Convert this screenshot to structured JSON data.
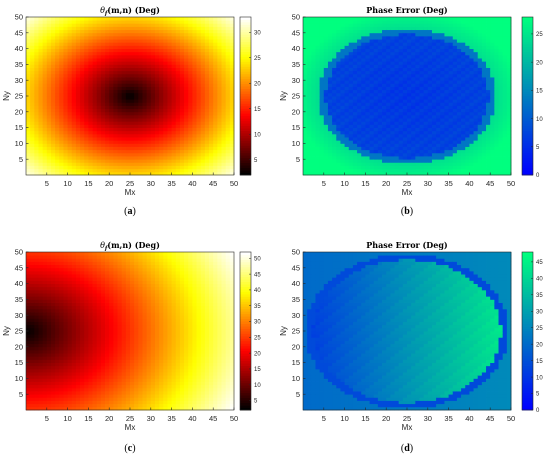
{
  "chart_data": [
    {
      "type": "heatmap",
      "caption": "(a)",
      "title": "θ_f(m,n) (Deg)",
      "title_parts": {
        "base": "θ",
        "sub": "f",
        "rest": "(m,n) (Deg)"
      },
      "xlabel": "Mx",
      "ylabel": "Ny",
      "xlim": [
        0,
        50
      ],
      "ylim": [
        0,
        50
      ],
      "xticks": [
        "5",
        "10",
        "15",
        "20",
        "25",
        "30",
        "35",
        "40",
        "45",
        "50"
      ],
      "yticks": [
        "5",
        "10",
        "15",
        "20",
        "25",
        "30",
        "35",
        "40",
        "45",
        "50"
      ],
      "colormap": "hot",
      "colorbar_range": [
        2,
        33
      ],
      "colorbar_ticks": [
        "5",
        "10",
        "15",
        "20",
        "25",
        "30"
      ],
      "colorbar_values": [
        5,
        10,
        15,
        20,
        25,
        30
      ],
      "grid_size": [
        50,
        50
      ],
      "model": {
        "form": "radial",
        "center": [
          25.5,
          25.5
        ],
        "min_value": 2,
        "gradient": 0.86
      }
    },
    {
      "type": "heatmap",
      "caption": "(b)",
      "title": "Phase Error (Deg)",
      "xlabel": "Mx",
      "ylabel": "Ny",
      "xlim": [
        0,
        50
      ],
      "ylim": [
        0,
        50
      ],
      "xticks": [
        "5",
        "10",
        "15",
        "20",
        "25",
        "30",
        "35",
        "40",
        "45",
        "50"
      ],
      "yticks": [
        "5",
        "10",
        "15",
        "20",
        "25",
        "30",
        "35",
        "40",
        "45",
        "50"
      ],
      "colormap": "winter",
      "colorbar_range": [
        0,
        28
      ],
      "colorbar_ticks": [
        "0",
        "5",
        "10",
        "15",
        "20",
        "25"
      ],
      "colorbar_values": [
        0,
        5,
        10,
        15,
        20,
        25
      ],
      "grid_size": [
        50,
        50
      ],
      "model": {
        "form": "ring",
        "center": [
          25.5,
          25.5
        ],
        "ring_radius": 20.5,
        "base_value": 5,
        "ring_value": 13,
        "outer_value": 24
      }
    },
    {
      "type": "heatmap",
      "caption": "(c)",
      "title": "θ_f(m,n) (Deg)",
      "title_parts": {
        "base": "θ",
        "sub": "f",
        "rest": "(m,n) (Deg)"
      },
      "xlabel": "Mx",
      "ylabel": "Ny",
      "xlim": [
        0,
        50
      ],
      "ylim": [
        0,
        50
      ],
      "xticks": [
        "5",
        "10",
        "15",
        "20",
        "25",
        "30",
        "35",
        "40",
        "45",
        "50"
      ],
      "yticks": [
        "5",
        "10",
        "15",
        "20",
        "25",
        "30",
        "35",
        "40",
        "45",
        "50"
      ],
      "colormap": "hot",
      "colorbar_range": [
        2,
        52
      ],
      "colorbar_ticks": [
        "5",
        "10",
        "15",
        "20",
        "25",
        "30",
        "35",
        "40",
        "45",
        "50"
      ],
      "colorbar_values": [
        5,
        10,
        15,
        20,
        25,
        30,
        35,
        40,
        45,
        50
      ],
      "grid_size": [
        50,
        50
      ],
      "model": {
        "form": "radial",
        "center": [
          0.5,
          25.5
        ],
        "min_value": 2,
        "gradient": 0.9
      }
    },
    {
      "type": "heatmap",
      "caption": "(d)",
      "title": "Phase Error (Deg)",
      "xlabel": "Mx",
      "ylabel": "Ny",
      "xlim": [
        0,
        50
      ],
      "ylim": [
        0,
        50
      ],
      "xticks": [
        "5",
        "10",
        "15",
        "20",
        "25",
        "30",
        "35",
        "40",
        "45",
        "50"
      ],
      "yticks": [
        "5",
        "10",
        "15",
        "20",
        "25",
        "30",
        "35",
        "40",
        "45",
        "50"
      ],
      "colormap": "winter",
      "colorbar_range": [
        0,
        48
      ],
      "colorbar_ticks": [
        "0",
        "5",
        "10",
        "15",
        "20",
        "25",
        "30",
        "35",
        "40",
        "45"
      ],
      "colorbar_values": [
        0,
        5,
        10,
        15,
        20,
        25,
        30,
        35,
        40,
        45
      ],
      "grid_size": [
        50,
        50
      ],
      "model": {
        "form": "ring-gradient",
        "center": [
          25.5,
          25.5
        ],
        "ring_radius": 23.5,
        "base_value": 10,
        "ring_value": 14,
        "outer_value": 20,
        "gradient_to": 44
      }
    }
  ],
  "colors": {
    "axis": "#262626",
    "tick_text": "#262626",
    "title": "#000000",
    "caption": "#000000"
  }
}
